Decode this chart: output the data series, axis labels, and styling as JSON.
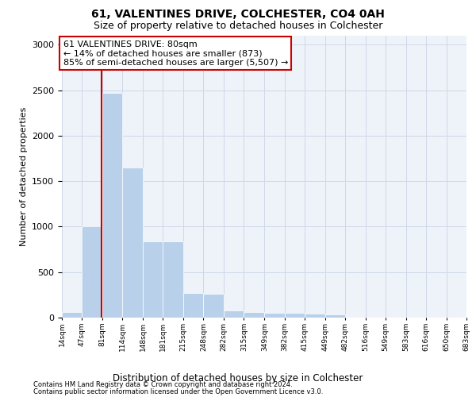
{
  "title": "61, VALENTINES DRIVE, COLCHESTER, CO4 0AH",
  "subtitle": "Size of property relative to detached houses in Colchester",
  "xlabel": "Distribution of detached houses by size in Colchester",
  "ylabel": "Number of detached properties",
  "footer_line1": "Contains HM Land Registry data © Crown copyright and database right 2024.",
  "footer_line2": "Contains public sector information licensed under the Open Government Licence v3.0.",
  "property_size": 80,
  "annotation_title": "61 VALENTINES DRIVE: 80sqm",
  "annotation_line2": "← 14% of detached houses are smaller (873)",
  "annotation_line3": "85% of semi-detached houses are larger (5,507) →",
  "bar_left_edges": [
    14,
    47,
    81,
    114,
    148,
    181,
    215,
    248,
    282,
    315,
    349,
    382,
    415,
    449,
    482,
    516,
    549,
    583,
    616,
    650
  ],
  "bar_right_edges": [
    47,
    81,
    114,
    148,
    181,
    215,
    248,
    282,
    315,
    349,
    382,
    415,
    449,
    482,
    516,
    549,
    583,
    616,
    650,
    683
  ],
  "bar_heights": [
    60,
    1000,
    2470,
    1650,
    840,
    840,
    270,
    265,
    75,
    60,
    55,
    55,
    40,
    35,
    0,
    0,
    0,
    0,
    0,
    0
  ],
  "tick_labels": [
    "14sqm",
    "47sqm",
    "81sqm",
    "114sqm",
    "148sqm",
    "181sqm",
    "215sqm",
    "248sqm",
    "282sqm",
    "315sqm",
    "349sqm",
    "382sqm",
    "415sqm",
    "449sqm",
    "482sqm",
    "516sqm",
    "549sqm",
    "583sqm",
    "616sqm",
    "650sqm",
    "683sqm"
  ],
  "bar_color": "#b8d0ea",
  "bar_edge_color": "#ffffff",
  "grid_color": "#d0d8e8",
  "bg_color": "#eef2f9",
  "vline_color": "#cc0000",
  "annotation_box_edgecolor": "#cc0000",
  "ylim": [
    0,
    3100
  ],
  "yticks": [
    0,
    500,
    1000,
    1500,
    2000,
    2500,
    3000
  ]
}
